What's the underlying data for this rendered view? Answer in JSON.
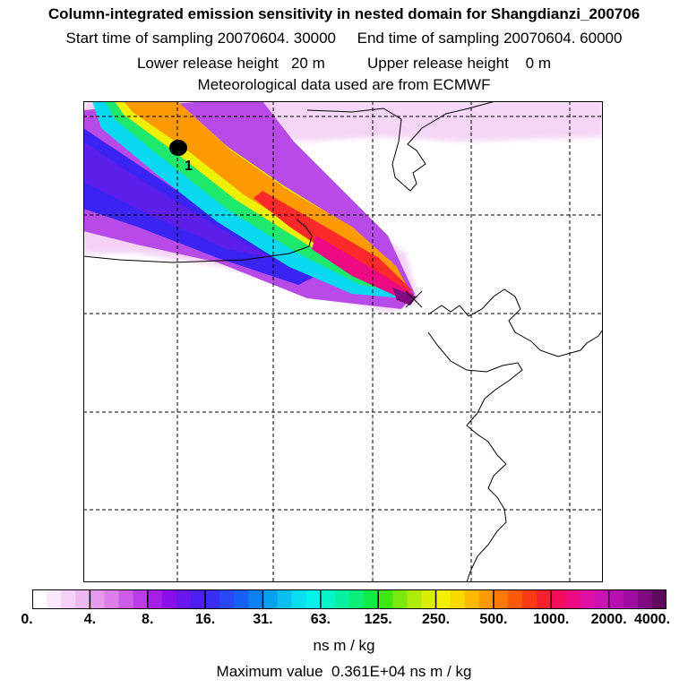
{
  "header": {
    "title": "Column-integrated emission sensitivity in nested domain for Shangdianzi_200706",
    "sampling_line": "Start time of sampling 20070604. 30000     End time of sampling 20070604. 60000",
    "release_line": "Lower release height   20 m          Upper release height    0 m",
    "met_line": "Meteorological data used are from ECMWF"
  },
  "map": {
    "receptor_marker": "x-marker-icon",
    "station_label": "1",
    "station_marker": "filled-circle-icon"
  },
  "colorbar": {
    "tick_labels": [
      "0.",
      "4.",
      "8.",
      "16.",
      "31.",
      "63.",
      "125.",
      "250.",
      "500.",
      "1000.",
      "2000.",
      "4000."
    ],
    "colors": [
      "#ffffff",
      "#fbe9fb",
      "#f6d2f8",
      "#f0b8f3",
      "#e79aee",
      "#dc7fea",
      "#cc5de6",
      "#b93ee5",
      "#a520e6",
      "#8a0fe8",
      "#6a16ee",
      "#4c1ef2",
      "#3a2df5",
      "#2847f5",
      "#1660f6",
      "#0c7ff3",
      "#0aa0f0",
      "#0cbff0",
      "#08ddf2",
      "#04f2ea",
      "#03f5c8",
      "#06f2a3",
      "#0aee78",
      "#12ea47",
      "#3ee913",
      "#7ce80d",
      "#aeea0a",
      "#d8ee06",
      "#f4f004",
      "#fbd800",
      "#fdba00",
      "#fe9a02",
      "#fe7a05",
      "#fc5a0a",
      "#fa3a12",
      "#f72030",
      "#f50c5a",
      "#ee0a82",
      "#e00ea2",
      "#cc12b2",
      "#b810b0",
      "#a00ca0",
      "#800a80",
      "#5e0a5c"
    ],
    "units": "ns m / kg"
  },
  "footer": {
    "max_value": "Maximum value  0.361E+04 ns m / kg"
  }
}
